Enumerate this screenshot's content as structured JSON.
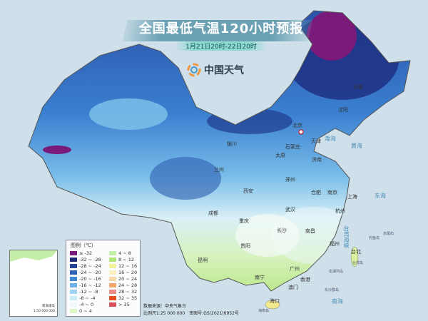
{
  "header": {
    "title": "全国最低气温120小时预报",
    "subtitle": "1月21日20时-22日20时",
    "logo_text": "中国天气",
    "logo_icon": "swirl-logo-icon"
  },
  "legend": {
    "title": "图例（℃）",
    "items": [
      {
        "label": "≤ -32",
        "color": "#7a1a7a"
      },
      {
        "label": "-32 ~ -28",
        "color": "#1c2a78"
      },
      {
        "label": "-28 ~ -24",
        "color": "#24479a"
      },
      {
        "label": "-24 ~ -20",
        "color": "#2c63b8"
      },
      {
        "label": "-20 ~ -16",
        "color": "#3f86d3"
      },
      {
        "label": "-16 ~ -12",
        "color": "#6cb2e6"
      },
      {
        "label": "-12 ~ -8",
        "color": "#9fd3ef"
      },
      {
        "label": "-8 ~ -4",
        "color": "#c9ecf7"
      },
      {
        "label": "-4 ~ 0",
        "color": "#eef8fb"
      },
      {
        "label": "0 ~ 4",
        "color": "#def5c6"
      },
      {
        "label": "4 ~ 8",
        "color": "#c4eda8"
      },
      {
        "label": "8 ~ 12",
        "color": "#b0e57a"
      },
      {
        "label": "12 ~ 16",
        "color": "#f4f29a"
      },
      {
        "label": "16 ~ 20",
        "color": "#fbefbe"
      },
      {
        "label": "20 ~ 24",
        "color": "#f7d9a8"
      },
      {
        "label": "24 ~ 28",
        "color": "#f0a76e"
      },
      {
        "label": "28 ~ 32",
        "color": "#ec8b84"
      },
      {
        "label": "32 ~ 35",
        "color": "#e6501e"
      },
      {
        "label": "> 35",
        "color": "#d94f5a"
      }
    ]
  },
  "footer": {
    "source": "数据来源：中央气象台",
    "scale": "比例尺1:25 000 000　审图号:GS(2021)6952号"
  },
  "inset": {
    "title": "南海诸岛",
    "scale": "1:50 000 000"
  },
  "cities": [
    {
      "name": "北京",
      "capital": true
    },
    {
      "name": "天津"
    },
    {
      "name": "石家庄"
    },
    {
      "name": "太原"
    },
    {
      "name": "济南"
    },
    {
      "name": "银川"
    },
    {
      "name": "兰州"
    },
    {
      "name": "西安"
    },
    {
      "name": "郑州"
    },
    {
      "name": "合肥"
    },
    {
      "name": "南京"
    },
    {
      "name": "上海"
    },
    {
      "name": "武汉"
    },
    {
      "name": "杭州"
    },
    {
      "name": "成都"
    },
    {
      "name": "重庆"
    },
    {
      "name": "长沙"
    },
    {
      "name": "南昌"
    },
    {
      "name": "贵阳"
    },
    {
      "name": "福州"
    },
    {
      "name": "台北"
    },
    {
      "name": "昆明"
    },
    {
      "name": "广州"
    },
    {
      "name": "南宁"
    },
    {
      "name": "香港"
    },
    {
      "name": "澳门"
    },
    {
      "name": "海口"
    },
    {
      "name": "沈阳"
    },
    {
      "name": "长春"
    }
  ],
  "seas": [
    "渤海",
    "黄海",
    "东海",
    "南海",
    "台湾海峡"
  ],
  "islands": [
    "钓鱼岛",
    "赤尾屿",
    "台湾岛",
    "澎湖列岛",
    "东沙群岛",
    "海南岛"
  ]
}
